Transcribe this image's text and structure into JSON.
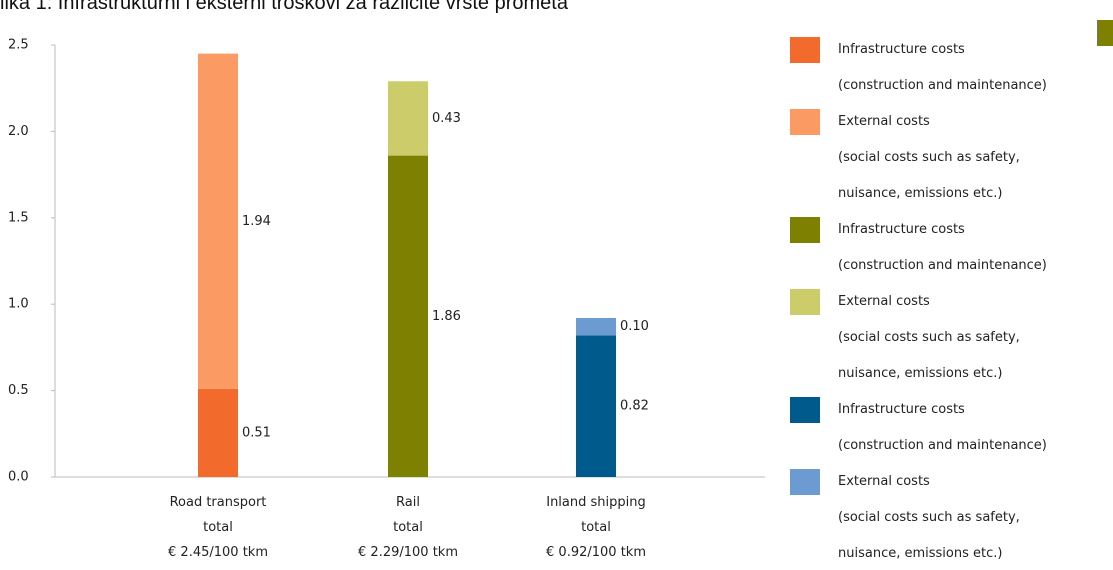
{
  "chart_data": {
    "type": "stacked_bar",
    "title": "lika 1: Infrastrukturni i eksterni troškovi za različite vrste prometa",
    "categories": [
      "Road transport\ntotal\n€ 2.45/100 tkm",
      "Rail\ntotal\n€ 2.29/100 tkm",
      "Inland shipping\ntotal\n€ 0.92/100 tkm"
    ],
    "series": [
      {
        "name": "Infrastructure costs\n(construction and maintenance)",
        "color": "#f26a2c",
        "values": [
          0.51,
          null,
          null
        ]
      },
      {
        "name": "External costs\n(social costs such as safety,\nnuisance, emissions etc.)",
        "color": "#fb9a62",
        "values": [
          1.94,
          null,
          null
        ]
      },
      {
        "name": "Infrastructure costs\n(construction and maintenance)",
        "color": "#7d8000",
        "values": [
          null,
          1.86,
          null
        ]
      },
      {
        "name": "External costs\n(social costs such as safety,\nnuisance, emissions etc.)",
        "color": "#cccc6a",
        "values": [
          null,
          0.43,
          null
        ]
      },
      {
        "name": "Infrastructure costs\n(construction and maintenance)",
        "color": "#005a8c",
        "values": [
          null,
          null,
          0.82
        ]
      },
      {
        "name": "External costs\n(social costs such as safety,\nnuisance, emissions etc.)",
        "color": "#6b9bd1",
        "values": [
          null,
          null,
          0.1
        ],
        "value_labels": [
          null,
          null,
          "0.10"
        ]
      }
    ],
    "ylim": [
      0,
      2.5
    ],
    "yticks": [
      {
        "value": 0,
        "label": "0.0"
      },
      0.5,
      {
        "value": 1,
        "label": "1.0"
      },
      1.5,
      {
        "value": 2,
        "label": "2.0"
      },
      2.5
    ],
    "grid": false
  }
}
